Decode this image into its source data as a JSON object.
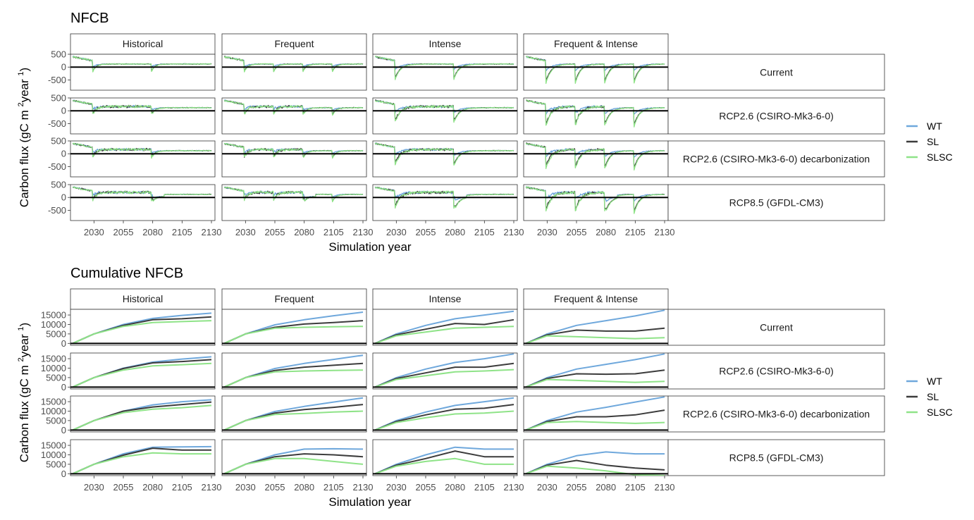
{
  "chart_data": [
    {
      "type": "line",
      "title": "NFCB",
      "xlabel": "Simulation year",
      "ylabel": "Carbon flux (gC m  year )",
      "ylabel_sup1": "2",
      "ylabel_sup2": "1",
      "x_ticks": [
        2030,
        2055,
        2080,
        2105,
        2130
      ],
      "x_range": [
        2010,
        2133
      ],
      "y_ticks": [
        500,
        0,
        -500
      ],
      "y_tick_labels": [
        "500",
        "0",
        "-500"
      ],
      "y_range": [
        -900,
        500
      ],
      "zero_line": true,
      "columns": [
        "Historical",
        "Frequent",
        "Intense",
        "Frequent & Intense"
      ],
      "rows": [
        "Current",
        "RCP2.6 (CSIRO-Mk3-6-0)",
        "RCP2.6 (CSIRO-Mk3-6-0) decarbonization",
        "RCP8.5 (GFDL-CM3)"
      ],
      "legend_position": "right",
      "series": [
        {
          "name": "WT",
          "color": "#6fa8dc"
        },
        {
          "name": "SL",
          "color": "#3c3c3c"
        },
        {
          "name": "SLSC",
          "color": "#8fe388"
        }
      ],
      "disturbance_years": {
        "Historical": [
          2029,
          2079
        ],
        "Frequent": [
          2029,
          2054,
          2079,
          2104
        ],
        "Intense": [
          2029,
          2079
        ],
        "Frequent & Intense": [
          2029,
          2054,
          2079,
          2104
        ]
      },
      "trough_depth": {
        "Historical": -300,
        "Frequent": -300,
        "Intense": -600,
        "Frequent & Intense": -750
      },
      "baseline_flux": {
        "start": 400,
        "pre_disturbance": 250,
        "post_disturbance": 120
      }
    },
    {
      "type": "line",
      "title": "Cumulative NFCB",
      "xlabel": "Simulation year",
      "ylabel": "Carbon flux (gC m  year )",
      "ylabel_sup1": "2",
      "ylabel_sup2": "1",
      "x_ticks": [
        2030,
        2055,
        2080,
        2105,
        2130
      ],
      "x_range": [
        2010,
        2133
      ],
      "y_ticks": [
        15000,
        10000,
        5000,
        0
      ],
      "y_tick_labels": [
        "15000",
        "10000",
        "5000",
        "0"
      ],
      "y_range": [
        -1000,
        18000
      ],
      "zero_line": true,
      "columns": [
        "Historical",
        "Frequent",
        "Intense",
        "Frequent & Intense"
      ],
      "rows": [
        "Current",
        "RCP2.6 (CSIRO-Mk3-6-0)",
        "RCP2.6 (CSIRO-Mk3-6-0) decarbonization",
        "RCP8.5 (GFDL-CM3)"
      ],
      "legend_position": "right",
      "series": [
        {
          "name": "WT",
          "color": "#6fa8dc"
        },
        {
          "name": "SL",
          "color": "#3c3c3c"
        },
        {
          "name": "SLSC",
          "color": "#8fe388"
        }
      ],
      "x_knots": [
        2012,
        2030,
        2055,
        2080,
        2105,
        2130
      ],
      "panels": [
        [
          {
            "WT": [
              0,
              5000,
              10000,
              13200,
              14800,
              16000
            ],
            "SL": [
              0,
              5000,
              9500,
              12500,
              13000,
              14000
            ],
            "SLSC": [
              0,
              5000,
              9000,
              11000,
              11500,
              12000
            ]
          },
          {
            "WT": [
              0,
              5000,
              9800,
              12500,
              14600,
              16500
            ],
            "SL": [
              0,
              5000,
              8500,
              10200,
              11000,
              12000
            ],
            "SLSC": [
              0,
              5000,
              8000,
              8500,
              8800,
              9000
            ]
          },
          {
            "WT": [
              0,
              5000,
              9500,
              13000,
              15000,
              17000
            ],
            "SL": [
              0,
              4500,
              7500,
              10500,
              10000,
              12500
            ],
            "SLSC": [
              0,
              4000,
              6000,
              8000,
              8500,
              9000
            ]
          },
          {
            "WT": [
              0,
              5000,
              9500,
              12000,
              14500,
              17500
            ],
            "SL": [
              0,
              4500,
              7000,
              6500,
              6500,
              8000
            ],
            "SLSC": [
              0,
              4000,
              3500,
              3000,
              2500,
              3000
            ]
          }
        ],
        [
          {
            "WT": [
              0,
              5000,
              10000,
              13200,
              14800,
              16000
            ],
            "SL": [
              0,
              5000,
              9800,
              12800,
              13500,
              14500
            ],
            "SLSC": [
              0,
              5000,
              9000,
              11200,
              11800,
              12500
            ]
          },
          {
            "WT": [
              0,
              5000,
              9800,
              12500,
              14600,
              16800
            ],
            "SL": [
              0,
              5000,
              8800,
              10500,
              11500,
              12500
            ],
            "SLSC": [
              0,
              5000,
              8000,
              8500,
              8800,
              9000
            ]
          },
          {
            "WT": [
              0,
              5000,
              9500,
              13000,
              15000,
              17500
            ],
            "SL": [
              0,
              4500,
              7500,
              10500,
              10500,
              12500
            ],
            "SLSC": [
              0,
              4000,
              6000,
              8000,
              8500,
              9200
            ]
          },
          {
            "WT": [
              0,
              5000,
              9500,
              12000,
              14500,
              17500
            ],
            "SL": [
              0,
              4500,
              7000,
              6800,
              7000,
              9000
            ],
            "SLSC": [
              0,
              4000,
              3500,
              3000,
              2500,
              3000
            ]
          }
        ],
        [
          {
            "WT": [
              0,
              5000,
              10000,
              13300,
              15000,
              16000
            ],
            "SL": [
              0,
              5000,
              10000,
              12200,
              13500,
              14800
            ],
            "SLSC": [
              0,
              5000,
              9200,
              11000,
              11800,
              13000
            ]
          },
          {
            "WT": [
              0,
              5000,
              9800,
              12500,
              14800,
              17000
            ],
            "SL": [
              0,
              5000,
              9000,
              10800,
              12000,
              13500
            ],
            "SLSC": [
              0,
              5000,
              8200,
              8800,
              9500,
              10000
            ]
          },
          {
            "WT": [
              0,
              5000,
              9500,
              13000,
              15000,
              17000
            ],
            "SL": [
              0,
              4500,
              8000,
              11000,
              11500,
              13500
            ],
            "SLSC": [
              0,
              4000,
              6500,
              8500,
              9000,
              10000
            ]
          },
          {
            "WT": [
              0,
              5000,
              9500,
              12000,
              14800,
              17500
            ],
            "SL": [
              0,
              4500,
              7000,
              7000,
              8000,
              10500
            ],
            "SLSC": [
              0,
              4000,
              4500,
              4000,
              3500,
              4000
            ]
          }
        ],
        [
          {
            "WT": [
              0,
              5000,
              10500,
              14000,
              14200,
              14300
            ],
            "SL": [
              0,
              5000,
              9800,
              13500,
              12500,
              12500
            ],
            "SLSC": [
              0,
              5000,
              9000,
              11000,
              10500,
              10500
            ]
          },
          {
            "WT": [
              0,
              5000,
              10000,
              13000,
              13200,
              13000
            ],
            "SL": [
              0,
              5000,
              9000,
              10500,
              10000,
              9000
            ],
            "SLSC": [
              0,
              5000,
              8000,
              8000,
              6500,
              5000
            ]
          },
          {
            "WT": [
              0,
              5000,
              10000,
              14000,
              13000,
              13000
            ],
            "SL": [
              0,
              4500,
              8000,
              12000,
              9000,
              9000
            ],
            "SLSC": [
              0,
              4000,
              6500,
              8000,
              5000,
              5000
            ]
          },
          {
            "WT": [
              0,
              5000,
              9500,
              11500,
              10500,
              10500
            ],
            "SL": [
              0,
              4500,
              7000,
              4500,
              3000,
              2000
            ],
            "SLSC": [
              0,
              4000,
              3000,
              1500,
              -500,
              -1000
            ]
          }
        ]
      ]
    }
  ]
}
